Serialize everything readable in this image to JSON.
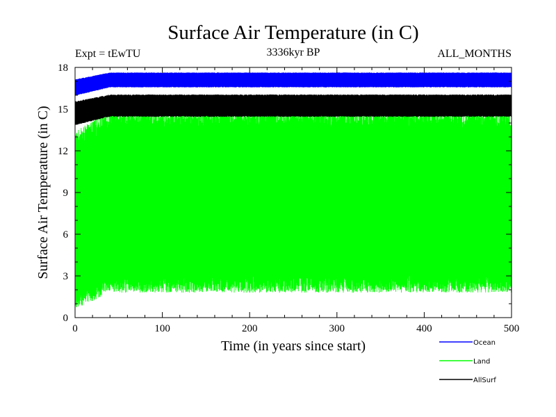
{
  "chart_data": {
    "type": "line",
    "title": "Surface Air Temperature (in C)",
    "subtitle_left": "Expt = tEwTU",
    "subtitle_center": "3336kyr BP",
    "subtitle_right": "ALL_MONTHS",
    "xlabel": "Time (in years since start)",
    "ylabel": "Surface Air Temperature (in C)",
    "xlim": [
      0,
      500
    ],
    "ylim": [
      0,
      18
    ],
    "xticks": [
      0,
      100,
      200,
      300,
      400,
      500
    ],
    "yticks": [
      0,
      3,
      6,
      9,
      12,
      15,
      18
    ],
    "grid": false,
    "legend_position": "bottom-right",
    "series": [
      {
        "name": "Ocean",
        "color": "#0000ff",
        "low": 16.6,
        "high": 17.6,
        "mean": 17.2
      },
      {
        "name": "Land",
        "color": "#00ff00",
        "low": 2.5,
        "high": 14.2,
        "mean": 8.5
      },
      {
        "name": "AllSurf",
        "color": "#000000",
        "low": 14.5,
        "high": 16.0,
        "mean": 15.4
      }
    ]
  }
}
